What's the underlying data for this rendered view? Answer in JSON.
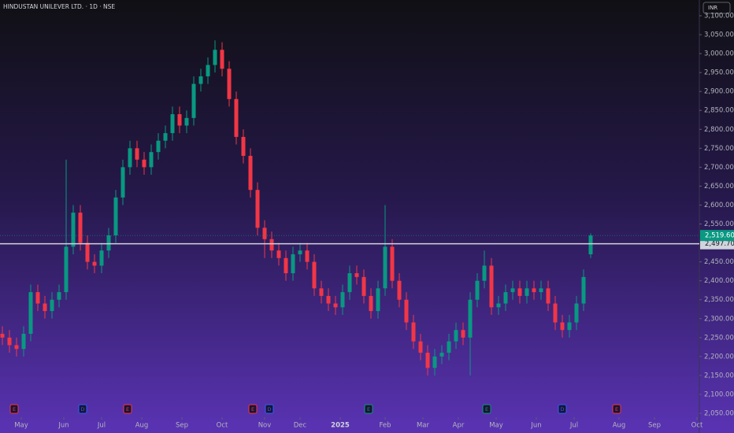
{
  "chart_data": {
    "type": "candlestick",
    "title": "HINDUSTAN UNILEVER LTD. · 1D · NSE",
    "currency": "INR",
    "up_color": "#089981",
    "down_color": "#f23645",
    "x": [
      1,
      4,
      7,
      10,
      13,
      16,
      19,
      22,
      25,
      28,
      31,
      34,
      37,
      40,
      43,
      46,
      49,
      52,
      55,
      58,
      61,
      64,
      67,
      70,
      73,
      76,
      79,
      82,
      85,
      88,
      91,
      94,
      97,
      100,
      103,
      106,
      109,
      112,
      115,
      118,
      121,
      124,
      127,
      130,
      133,
      136,
      139,
      142,
      145,
      148,
      151,
      154,
      157,
      160,
      163,
      166,
      169,
      172,
      175,
      178,
      181,
      184,
      187,
      190,
      193,
      196,
      199,
      202,
      205,
      208,
      211,
      214,
      217,
      220,
      223,
      226,
      229,
      232,
      235,
      238,
      241,
      244,
      247,
      250
    ],
    "open": [
      2260,
      2250,
      2230,
      2220,
      2260,
      2370,
      2340,
      2320,
      2350,
      2370,
      2490,
      2580,
      2500,
      2450,
      2440,
      2480,
      2520,
      2620,
      2700,
      2750,
      2720,
      2700,
      2740,
      2770,
      2790,
      2840,
      2810,
      2830,
      2920,
      2940,
      2970,
      3010,
      2960,
      2880,
      2780,
      2730,
      2640,
      2540,
      2510,
      2480,
      2460,
      2420,
      2470,
      2480,
      2450,
      2380,
      2360,
      2340,
      2330,
      2370,
      2420,
      2410,
      2360,
      2320,
      2380,
      2490,
      2400,
      2350,
      2290,
      2240,
      2210,
      2170,
      2200,
      2210,
      2240,
      2270,
      2250,
      2350,
      2400,
      2440,
      2330,
      2340,
      2370,
      2380,
      2360,
      2380,
      2370,
      2380,
      2340,
      2290,
      2270,
      2290,
      2340,
      2470
    ],
    "high": [
      2280,
      2270,
      2250,
      2280,
      2390,
      2390,
      2360,
      2370,
      2390,
      2720,
      2600,
      2600,
      2520,
      2470,
      2500,
      2540,
      2640,
      2720,
      2770,
      2770,
      2740,
      2760,
      2790,
      2810,
      2860,
      2860,
      2850,
      2940,
      2960,
      2990,
      3035,
      3030,
      2980,
      2900,
      2800,
      2750,
      2660,
      2560,
      2530,
      2500,
      2480,
      2490,
      2500,
      2500,
      2470,
      2400,
      2380,
      2360,
      2390,
      2440,
      2440,
      2430,
      2380,
      2400,
      2600,
      2510,
      2420,
      2370,
      2310,
      2260,
      2230,
      2220,
      2230,
      2260,
      2290,
      2290,
      2370,
      2420,
      2480,
      2460,
      2360,
      2390,
      2400,
      2400,
      2400,
      2400,
      2400,
      2400,
      2360,
      2310,
      2310,
      2360,
      2430,
      2525
    ],
    "low": [
      2230,
      2210,
      2200,
      2200,
      2240,
      2320,
      2300,
      2300,
      2330,
      2350,
      2470,
      2480,
      2430,
      2420,
      2420,
      2460,
      2500,
      2600,
      2680,
      2700,
      2680,
      2680,
      2720,
      2750,
      2770,
      2790,
      2790,
      2810,
      2900,
      2920,
      2950,
      2940,
      2860,
      2760,
      2710,
      2620,
      2520,
      2460,
      2460,
      2440,
      2400,
      2400,
      2450,
      2430,
      2360,
      2340,
      2320,
      2310,
      2310,
      2350,
      2390,
      2340,
      2300,
      2300,
      2360,
      2380,
      2330,
      2270,
      2220,
      2190,
      2150,
      2150,
      2180,
      2190,
      2220,
      2230,
      2150,
      2330,
      2380,
      2310,
      2310,
      2320,
      2350,
      2340,
      2340,
      2350,
      2350,
      2320,
      2270,
      2250,
      2250,
      2270,
      2320,
      2460
    ],
    "close": [
      2250,
      2230,
      2220,
      2260,
      2370,
      2340,
      2320,
      2350,
      2370,
      2490,
      2580,
      2500,
      2450,
      2440,
      2480,
      2520,
      2620,
      2700,
      2750,
      2720,
      2700,
      2740,
      2770,
      2790,
      2840,
      2810,
      2830,
      2920,
      2940,
      2970,
      3010,
      2960,
      2880,
      2780,
      2730,
      2640,
      2540,
      2510,
      2480,
      2460,
      2420,
      2470,
      2480,
      2450,
      2380,
      2360,
      2340,
      2330,
      2370,
      2420,
      2410,
      2360,
      2320,
      2380,
      2490,
      2400,
      2350,
      2290,
      2240,
      2210,
      2170,
      2200,
      2210,
      2240,
      2270,
      2250,
      2350,
      2400,
      2440,
      2330,
      2340,
      2370,
      2380,
      2360,
      2380,
      2370,
      2380,
      2340,
      2290,
      2270,
      2290,
      2340,
      2410,
      2519.6
    ],
    "xlim": [
      0,
      296
    ],
    "xticks": [
      {
        "value": 9,
        "label": "May"
      },
      {
        "value": 27,
        "label": "Jun"
      },
      {
        "value": 43,
        "label": "Jul"
      },
      {
        "value": 60,
        "label": "Aug"
      },
      {
        "value": 77,
        "label": "Sep"
      },
      {
        "value": 94,
        "label": "Oct"
      },
      {
        "value": 112,
        "label": "Nov"
      },
      {
        "value": 127,
        "label": "Dec"
      },
      {
        "value": 144,
        "label": "2025"
      },
      {
        "value": 163,
        "label": "Feb"
      },
      {
        "value": 179,
        "label": "Mar"
      },
      {
        "value": 194,
        "label": "Apr"
      },
      {
        "value": 210,
        "label": "May"
      },
      {
        "value": 227,
        "label": "Jun"
      },
      {
        "value": 243,
        "label": "Jul"
      },
      {
        "value": 262,
        "label": "Aug"
      },
      {
        "value": 277,
        "label": "Sep"
      },
      {
        "value": 295,
        "label": "Oct"
      }
    ],
    "ylim": [
      2050,
      3100
    ],
    "yticks": [
      {
        "value": 2050,
        "label": "2,050.00"
      },
      {
        "value": 2100,
        "label": "2,100.00"
      },
      {
        "value": 2150,
        "label": "2,150.00"
      },
      {
        "value": 2200,
        "label": "2,200.00"
      },
      {
        "value": 2250,
        "label": "2,250.00"
      },
      {
        "value": 2300,
        "label": "2,300.00"
      },
      {
        "value": 2350,
        "label": "2,350.00"
      },
      {
        "value": 2400,
        "label": "2,400.00"
      },
      {
        "value": 2450,
        "label": "2,450.00"
      },
      {
        "value": 2550,
        "label": "2,550.00"
      },
      {
        "value": 2600,
        "label": "2,600.00"
      },
      {
        "value": 2650,
        "label": "2,650.00"
      },
      {
        "value": 2700,
        "label": "2,700.00"
      },
      {
        "value": 2750,
        "label": "2,750.00"
      },
      {
        "value": 2800,
        "label": "2,800.00"
      },
      {
        "value": 2850,
        "label": "2,850.00"
      },
      {
        "value": 2900,
        "label": "2,900.00"
      },
      {
        "value": 2950,
        "label": "2,950.00"
      },
      {
        "value": 3000,
        "label": "3,000.00"
      },
      {
        "value": 3050,
        "label": "3,050.00"
      },
      {
        "value": 3100,
        "label": "3,100.00"
      }
    ],
    "last_price": {
      "value": 2519.6,
      "label": "2,519.60",
      "color": "#089981"
    },
    "prev_close": {
      "value": 2497.7,
      "label": "2,497.70",
      "color": "#d1d4dc"
    },
    "events": [
      {
        "x": 6,
        "label": "E",
        "color": "#f23645"
      },
      {
        "x": 35,
        "label": "D",
        "color": "#2962ff"
      },
      {
        "x": 54,
        "label": "E",
        "color": "#f23645"
      },
      {
        "x": 107,
        "label": "E",
        "color": "#f23645"
      },
      {
        "x": 114,
        "label": "D",
        "color": "#2962ff"
      },
      {
        "x": 156,
        "label": "E",
        "color": "#089981"
      },
      {
        "x": 206,
        "label": "E",
        "color": "#089981"
      },
      {
        "x": 238,
        "label": "D",
        "color": "#2962ff"
      },
      {
        "x": 261,
        "label": "E",
        "color": "#f23645"
      }
    ]
  }
}
